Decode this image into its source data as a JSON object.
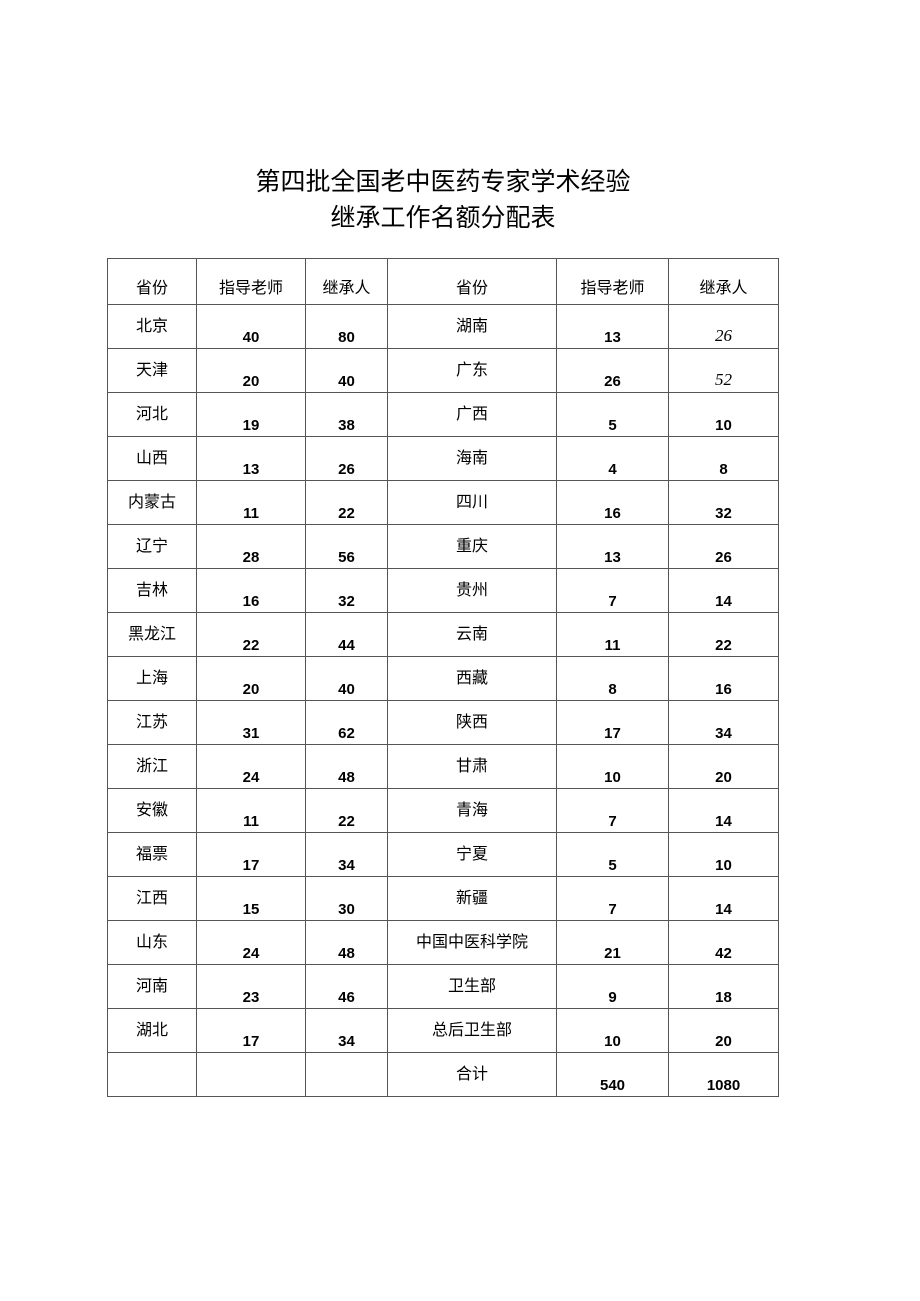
{
  "title": {
    "line1": "第四批全国老中医药专家学术经验",
    "line2": "继承工作名额分配表"
  },
  "table": {
    "headers": [
      "省份",
      "指导老师",
      "继承人",
      "省份",
      "指导老师",
      "继承人"
    ],
    "rows": [
      [
        "北京",
        "40",
        "80",
        "湖南",
        "13",
        "26"
      ],
      [
        "天津",
        "20",
        "40",
        "广东",
        "26",
        "52"
      ],
      [
        "河北",
        "19",
        "38",
        "广西",
        "5",
        "10"
      ],
      [
        "山西",
        "13",
        "26",
        "海南",
        "4",
        "8"
      ],
      [
        "内蒙古",
        "11",
        "22",
        "四川",
        "16",
        "32"
      ],
      [
        "辽宁",
        "28",
        "56",
        "重庆",
        "13",
        "26"
      ],
      [
        "吉林",
        "16",
        "32",
        "贵州",
        "7",
        "14"
      ],
      [
        "黑龙江",
        "22",
        "44",
        "云南",
        "11",
        "22"
      ],
      [
        "上海",
        "20",
        "40",
        "西藏",
        "8",
        "16"
      ],
      [
        "江苏",
        "31",
        "62",
        "陕西",
        "17",
        "34"
      ],
      [
        "浙江",
        "24",
        "48",
        "甘肃",
        "10",
        "20"
      ],
      [
        "安徽",
        "11",
        "22",
        "青海",
        "7",
        "14"
      ],
      [
        "福票",
        "17",
        "34",
        "宁夏",
        "5",
        "10"
      ],
      [
        "江西",
        "15",
        "30",
        "新疆",
        "7",
        "14"
      ],
      [
        "山东",
        "24",
        "48",
        "中国中医科学院",
        "21",
        "42"
      ],
      [
        "河南",
        "23",
        "46",
        "卫生部",
        "9",
        "18"
      ],
      [
        "湖北",
        "17",
        "34",
        "总后卫生部",
        "10",
        "20"
      ],
      [
        "",
        "",
        "",
        "合计",
        "540",
        "1080"
      ]
    ]
  }
}
